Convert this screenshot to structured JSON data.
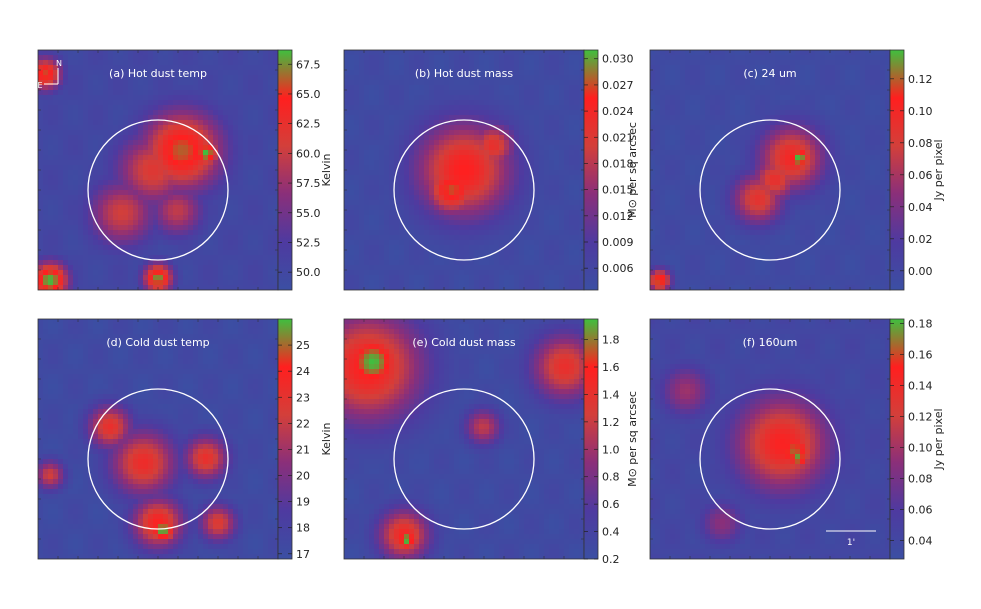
{
  "figure": {
    "colormap": [
      "#3b4fa3",
      "#4e3aa0",
      "#8a2f7a",
      "#d33f3a",
      "#ff1f1f",
      "#3fbf3f"
    ],
    "region_circle_color": "#ffffff",
    "compass": {
      "north": "N",
      "east": "E"
    },
    "scale_bar": {
      "label": "1'"
    }
  },
  "chart_data": [
    {
      "type": "heatmap",
      "panel": "a",
      "title": "(a) Hot dust temp",
      "colorbar": {
        "label": "Kelvin",
        "range": [
          48.5,
          68.7
        ],
        "ticks": [
          50.0,
          52.5,
          55.0,
          57.5,
          60.0,
          62.5,
          65.0,
          67.5
        ],
        "tick_labels": [
          "50.0",
          "52.5",
          "55.0",
          "57.5",
          "60.0",
          "62.5",
          "65.0",
          "67.5"
        ]
      },
      "background": 0.08,
      "features": [
        {
          "x": 0.6,
          "y": 0.58,
          "r": 0.22,
          "v": 0.88
        },
        {
          "x": 0.48,
          "y": 0.5,
          "r": 0.2,
          "v": 0.65
        },
        {
          "x": 0.35,
          "y": 0.32,
          "r": 0.18,
          "v": 0.6
        },
        {
          "x": 0.58,
          "y": 0.33,
          "r": 0.14,
          "v": 0.55
        },
        {
          "x": 0.7,
          "y": 0.57,
          "r": 0.07,
          "v": 1.0
        },
        {
          "x": 0.05,
          "y": 0.04,
          "r": 0.1,
          "v": 1.0
        },
        {
          "x": 0.03,
          "y": 0.9,
          "r": 0.09,
          "v": 0.85
        },
        {
          "x": 0.5,
          "y": 0.05,
          "r": 0.08,
          "v": 0.95
        }
      ]
    },
    {
      "type": "heatmap",
      "panel": "b",
      "title": "(b) Hot dust mass",
      "colorbar": {
        "label": "M⊙ per sq arcsec",
        "range": [
          0.0035,
          0.031
        ],
        "ticks": [
          0.006,
          0.009,
          0.012,
          0.015,
          0.018,
          0.021,
          0.024,
          0.027,
          0.03
        ],
        "tick_labels": [
          "0.006",
          "0.009",
          "0.012",
          "0.015",
          "0.018",
          "0.021",
          "0.024",
          "0.027",
          "0.030"
        ]
      },
      "background": 0.05,
      "features": [
        {
          "x": 0.5,
          "y": 0.5,
          "r": 0.26,
          "v": 0.8
        },
        {
          "x": 0.45,
          "y": 0.42,
          "r": 0.14,
          "v": 0.86
        },
        {
          "x": 0.62,
          "y": 0.6,
          "r": 0.12,
          "v": 0.7
        }
      ]
    },
    {
      "type": "heatmap",
      "panel": "c",
      "title": "(c) 24 um",
      "colorbar": {
        "label": "Jy per pixel",
        "range": [
          -0.012,
          0.138
        ],
        "ticks": [
          0.0,
          0.02,
          0.04,
          0.06,
          0.08,
          0.1,
          0.12
        ],
        "tick_labels": [
          "0.00",
          "0.02",
          "0.04",
          "0.06",
          "0.08",
          "0.10",
          "0.12"
        ]
      },
      "background": 0.05,
      "features": [
        {
          "x": 0.59,
          "y": 0.55,
          "r": 0.18,
          "v": 0.75
        },
        {
          "x": 0.45,
          "y": 0.38,
          "r": 0.14,
          "v": 0.68
        },
        {
          "x": 0.52,
          "y": 0.46,
          "r": 0.12,
          "v": 0.7
        },
        {
          "x": 0.62,
          "y": 0.55,
          "r": 0.07,
          "v": 1.0
        },
        {
          "x": 0.04,
          "y": 0.04,
          "r": 0.06,
          "v": 0.9
        }
      ]
    },
    {
      "type": "heatmap",
      "panel": "d",
      "title": "(d) Cold dust temp",
      "colorbar": {
        "label": "Kelvin",
        "range": [
          16.8,
          26.0
        ],
        "ticks": [
          17,
          18,
          19,
          20,
          21,
          22,
          23,
          24,
          25
        ],
        "tick_labels": [
          "17",
          "18",
          "19",
          "20",
          "21",
          "22",
          "23",
          "24",
          "25"
        ]
      },
      "background": 0.05,
      "features": [
        {
          "x": 0.44,
          "y": 0.4,
          "r": 0.18,
          "v": 0.72
        },
        {
          "x": 0.3,
          "y": 0.55,
          "r": 0.12,
          "v": 0.7
        },
        {
          "x": 0.7,
          "y": 0.42,
          "r": 0.12,
          "v": 0.7
        },
        {
          "x": 0.75,
          "y": 0.15,
          "r": 0.1,
          "v": 0.65
        },
        {
          "x": 0.5,
          "y": 0.15,
          "r": 0.14,
          "v": 0.78
        },
        {
          "x": 0.52,
          "y": 0.12,
          "r": 0.07,
          "v": 1.0
        },
        {
          "x": 0.05,
          "y": 0.35,
          "r": 0.08,
          "v": 0.6
        }
      ]
    },
    {
      "type": "heatmap",
      "panel": "e",
      "title": "(e) Cold dust mass",
      "colorbar": {
        "label": "M⊙ per sq arcsec",
        "range": [
          0.2,
          1.95
        ],
        "ticks": [
          0.2,
          0.4,
          0.6,
          0.8,
          1.0,
          1.2,
          1.4,
          1.6,
          1.8
        ],
        "tick_labels": [
          "0.2",
          "0.4",
          "0.6",
          "0.8",
          "1.0",
          "1.2",
          "1.4",
          "1.6",
          "1.8"
        ]
      },
      "background": 0.05,
      "features": [
        {
          "x": 0.1,
          "y": 0.8,
          "r": 0.3,
          "v": 0.8
        },
        {
          "x": 0.12,
          "y": 0.82,
          "r": 0.16,
          "v": 1.0
        },
        {
          "x": 0.92,
          "y": 0.8,
          "r": 0.18,
          "v": 0.7
        },
        {
          "x": 0.25,
          "y": 0.1,
          "r": 0.14,
          "v": 0.75
        },
        {
          "x": 0.26,
          "y": 0.08,
          "r": 0.06,
          "v": 1.0
        },
        {
          "x": 0.58,
          "y": 0.55,
          "r": 0.1,
          "v": 0.55
        }
      ]
    },
    {
      "type": "heatmap",
      "panel": "f",
      "title": "(f) 160um",
      "colorbar": {
        "label": "Jy per pixel",
        "range": [
          0.028,
          0.183
        ],
        "ticks": [
          0.04,
          0.06,
          0.08,
          0.1,
          0.12,
          0.14,
          0.16,
          0.18
        ],
        "tick_labels": [
          "0.04",
          "0.06",
          "0.08",
          "0.10",
          "0.12",
          "0.14",
          "0.16",
          "0.18"
        ]
      },
      "background": 0.08,
      "features": [
        {
          "x": 0.55,
          "y": 0.48,
          "r": 0.26,
          "v": 0.78
        },
        {
          "x": 0.6,
          "y": 0.45,
          "r": 0.12,
          "v": 0.88
        },
        {
          "x": 0.62,
          "y": 0.42,
          "r": 0.05,
          "v": 1.0
        },
        {
          "x": 0.15,
          "y": 0.7,
          "r": 0.14,
          "v": 0.45
        },
        {
          "x": 0.3,
          "y": 0.15,
          "r": 0.12,
          "v": 0.4
        }
      ]
    }
  ]
}
